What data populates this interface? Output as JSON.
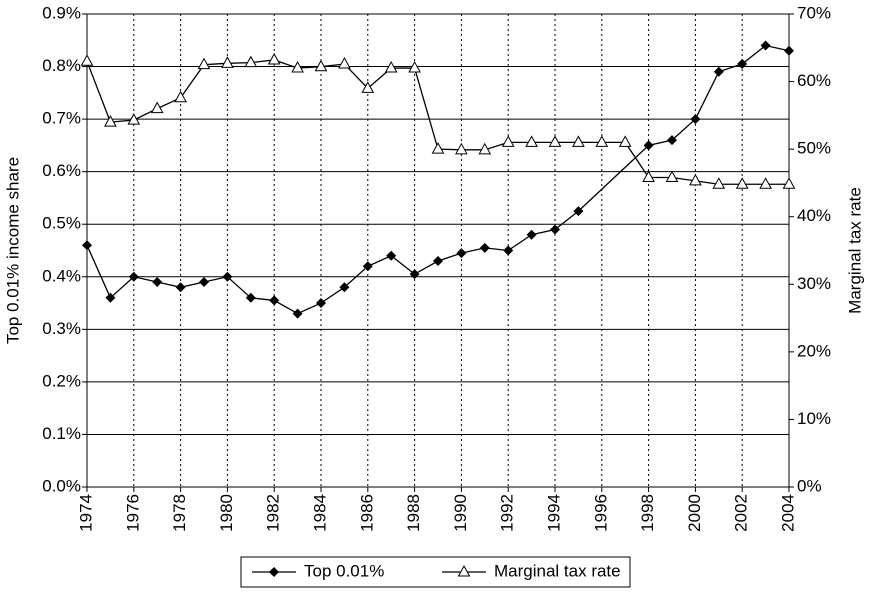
{
  "chart_data": {
    "type": "line",
    "y_label": "Top 0.01% income share",
    "y2_label": "Marginal tax rate",
    "xlim": [
      1974,
      2004
    ],
    "xticks": [
      1974,
      1976,
      1978,
      1980,
      1982,
      1984,
      1986,
      1988,
      1990,
      1992,
      1994,
      1996,
      1998,
      2000,
      2002,
      2004
    ],
    "ylim": [
      0,
      0.9
    ],
    "yticks": [
      {
        "value": 0,
        "label": "0.0%"
      },
      {
        "value": 0.1,
        "label": "0.1%"
      },
      {
        "value": 0.2,
        "label": "0.2%"
      },
      {
        "value": 0.3,
        "label": "0.3%"
      },
      {
        "value": 0.4,
        "label": "0.4%"
      },
      {
        "value": 0.5,
        "label": "0.5%"
      },
      {
        "value": 0.6,
        "label": "0.6%"
      },
      {
        "value": 0.7,
        "label": "0.7%"
      },
      {
        "value": 0.8,
        "label": "0.8%"
      },
      {
        "value": 0.9,
        "label": "0.9%"
      }
    ],
    "y2lim": [
      0,
      70
    ],
    "y2ticks": [
      {
        "value": 0,
        "label": "0%"
      },
      {
        "value": 10,
        "label": "10%"
      },
      {
        "value": 20,
        "label": "20%"
      },
      {
        "value": 30,
        "label": "30%"
      },
      {
        "value": 40,
        "label": "40%"
      },
      {
        "value": 50,
        "label": "50%"
      },
      {
        "value": 60,
        "label": "60%"
      },
      {
        "value": 70,
        "label": "70%"
      }
    ],
    "grid": true,
    "legend": "bottom",
    "series": [
      {
        "name": "Top 0.01%",
        "color": "#000000",
        "marker": "diamond",
        "x": [
          1974,
          1975,
          1976,
          1977,
          1978,
          1979,
          1980,
          1981,
          1982,
          1983,
          1984,
          1985,
          1986,
          1987,
          1988,
          1989,
          1990,
          1991,
          1992,
          1993,
          1994,
          1995,
          1998,
          1999,
          2000,
          2001,
          2002,
          2003,
          2004
        ],
        "values": [
          0.46,
          0.36,
          0.4,
          0.39,
          0.38,
          0.39,
          0.4,
          0.36,
          0.355,
          0.33,
          0.35,
          0.38,
          0.42,
          0.44,
          0.405,
          0.43,
          0.445,
          0.455,
          0.45,
          0.48,
          0.49,
          0.525,
          0.65,
          0.66,
          0.7,
          0.79,
          0.805,
          0.84,
          0.83
        ]
      },
      {
        "name": "Marginal tax rate",
        "color": "#000000",
        "marker": "triangle",
        "axis": "y2",
        "x": [
          1974,
          1975,
          1976,
          1977,
          1978,
          1979,
          1980,
          1981,
          1982,
          1983,
          1984,
          1985,
          1986,
          1987,
          1988,
          1989,
          1990,
          1991,
          1992,
          1993,
          1994,
          1995,
          1996,
          1997,
          1998,
          1999,
          2000,
          2001,
          2002,
          2003,
          2004
        ],
        "values": [
          63,
          54,
          54.3,
          56,
          57.6,
          62.5,
          62.7,
          62.8,
          63.2,
          62,
          62.2,
          62.6,
          59,
          62,
          62,
          50,
          49.9,
          49.9,
          51,
          51,
          51,
          51,
          51,
          51,
          45.8,
          45.8,
          45.3,
          44.8,
          44.8,
          44.8,
          44.8
        ]
      }
    ]
  }
}
